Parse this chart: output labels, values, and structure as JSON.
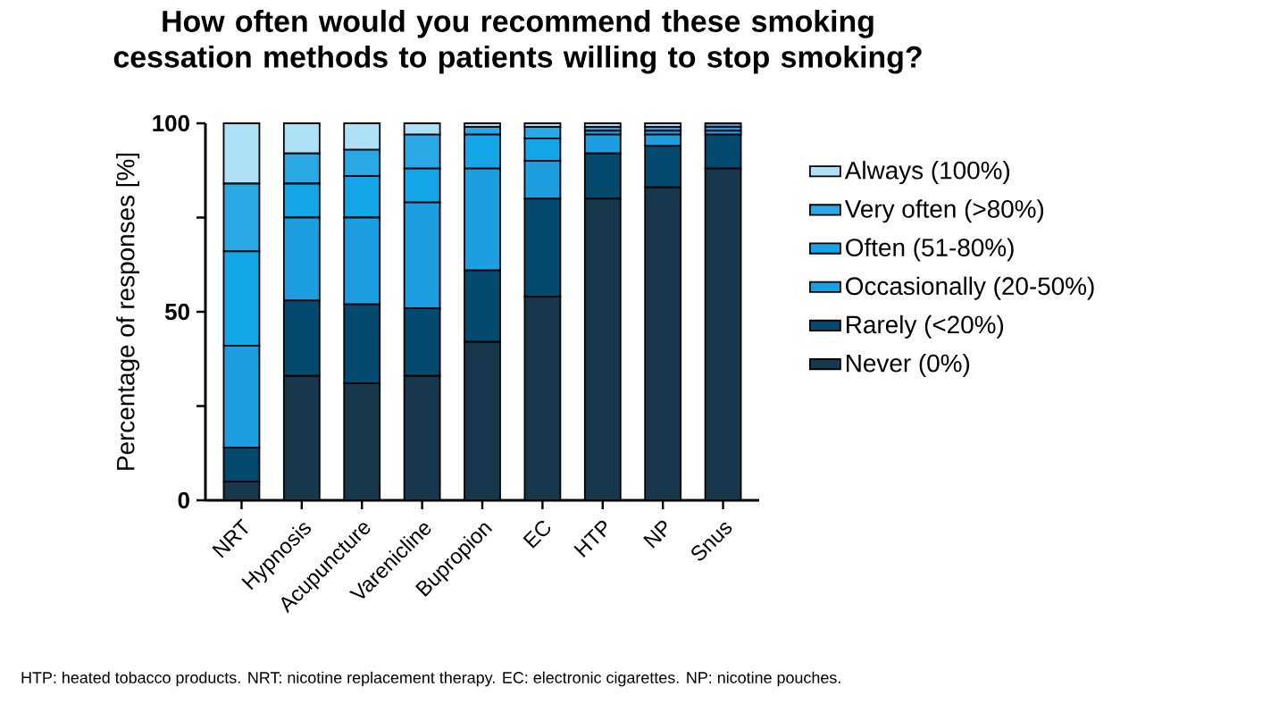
{
  "chart_data": {
    "type": "bar",
    "stacked": true,
    "title": "How often would you recommend these smoking cessation methods to patients willing to stop smoking?",
    "ylabel": "Percentage of responses [%]",
    "categories": [
      "NRT",
      "Hypnosis",
      "Acupuncture",
      "Varenicline",
      "Bupropion",
      "EC",
      "HTP",
      "NP",
      "Snus"
    ],
    "series": [
      {
        "name": "Never (0%)",
        "color": "#17374c",
        "values": [
          5,
          33,
          31,
          33,
          42,
          54,
          80,
          83,
          88
        ]
      },
      {
        "name": "Rarely (<20%)",
        "color": "#034a6e",
        "values": [
          9,
          20,
          21,
          18,
          19,
          26,
          12,
          11,
          9
        ]
      },
      {
        "name": "Occasionally (20-50%)",
        "color": "#1c9ee0",
        "values": [
          27,
          22,
          23,
          28,
          27,
          10,
          5,
          3,
          1
        ]
      },
      {
        "name": "Often (51-80%)",
        "color": "#14a5e9",
        "values": [
          25,
          9,
          11,
          9,
          9,
          6,
          1,
          1,
          1
        ]
      },
      {
        "name": "Very often (>80%)",
        "color": "#2aa8e6",
        "values": [
          18,
          8,
          7,
          9,
          2,
          3,
          1,
          1,
          1
        ]
      },
      {
        "name": "Always (100%)",
        "color": "#aee0f8",
        "values": [
          16,
          8,
          7,
          3,
          1,
          1,
          1,
          1,
          0
        ]
      }
    ],
    "ylim": [
      0,
      100
    ],
    "yticks": [
      0,
      {
        "value": 25,
        "label": null
      },
      50,
      {
        "value": 75,
        "label": null
      },
      100
    ],
    "legend": "right",
    "annotations": [
      "HTP: heated tobacco products. NRT: nicotine replacement therapy. EC: electronic cigarettes. NP: nicotine pouches."
    ]
  }
}
